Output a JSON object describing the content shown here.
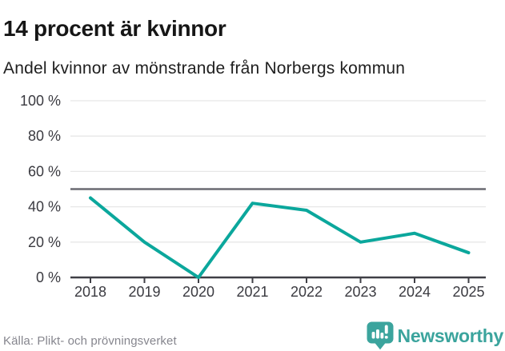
{
  "header": {
    "title": "14 procent är kvinnor",
    "subtitle": "Andel kvinnor av mönstrande från Norbergs kommun"
  },
  "chart_data": {
    "type": "line",
    "title": "14 procent är kvinnor",
    "subtitle": "Andel kvinnor av mönstrande från Norbergs kommun",
    "categories": [
      "2018",
      "2019",
      "2020",
      "2021",
      "2022",
      "2023",
      "2024",
      "2025"
    ],
    "series": [
      {
        "name": "Andel kvinnor av mönstrande",
        "values": [
          45,
          20,
          0,
          42,
          38,
          20,
          25,
          14
        ]
      }
    ],
    "unit": "%",
    "ylim": [
      0,
      100
    ],
    "yticks": [
      0,
      20,
      40,
      60,
      80,
      100
    ],
    "ytick_suffix": " %",
    "reference_line_y": 50,
    "grid": "horizontal",
    "legend": "none",
    "colors": {
      "line": "#0ba79c",
      "reference_line": "#6b6b72",
      "axis": "#3f3f46",
      "gridline": "#e7e7e7",
      "tick_label": "#3a3a40"
    }
  },
  "footer": {
    "source_label": "Källa: Plikt- och prövningsverket",
    "brand_name": "Newsworthy",
    "brand_color": "#3ba49d",
    "logo_icon": "newsworthy-pin-bar-chart-exclamation"
  }
}
